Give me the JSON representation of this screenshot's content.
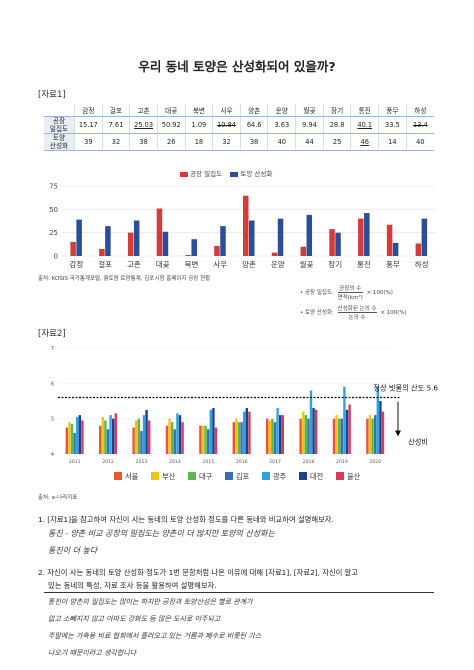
{
  "title": "우리 동네 토양은 산성화되어 있을까?",
  "material1": {
    "label": "[자료1]",
    "table": {
      "columns": [
        "감정",
        "걸포",
        "고촌",
        "대곶",
        "북변",
        "사우",
        "양촌",
        "운양",
        "월곶",
        "장기",
        "통진",
        "풍무",
        "하성"
      ],
      "rows": [
        {
          "label_line1": "공장",
          "label_line2": "밀집도",
          "values": [
            "15.17",
            "7.61",
            "25.03",
            "50.92",
            "1.09",
            "10.84",
            "64.6",
            "3.63",
            "9.94",
            "28.8",
            "40.1",
            "33.5",
            "13.4"
          ]
        },
        {
          "label_line1": "토양",
          "label_line2": "산성화",
          "values": [
            "39",
            "32",
            "38",
            "26",
            "18",
            "32",
            "38",
            "40",
            "44",
            "25",
            "46",
            "14",
            "40"
          ]
        }
      ]
    },
    "legend": {
      "factory": "공장 밀집도",
      "soil": "토양 산성화"
    },
    "source": "출처: KOSIS 국가통계포털, 흙토람 토양통계, 김포시청 홈페이지 공장 현황",
    "formula1": {
      "label": "• 공장 밀집도:",
      "num": "공장의 수",
      "den": "면적(km²)",
      "tail": "× 100(%)"
    },
    "formula2": {
      "label": "• 토양 산성화:",
      "num": "산성화된 논의 수",
      "den": "논의 수",
      "tail": "× 100(%)"
    }
  },
  "chart_data": [
    {
      "type": "bar",
      "categories": [
        "감정",
        "걸포",
        "고촌",
        "대곶",
        "북변",
        "사우",
        "양촌",
        "운양",
        "월곶",
        "장기",
        "통진",
        "풍무",
        "하성"
      ],
      "series": [
        {
          "name": "공장 밀집도",
          "values": [
            15.17,
            7.61,
            25.03,
            50.92,
            1.09,
            10.84,
            64.6,
            3.63,
            9.94,
            28.8,
            40.1,
            33.5,
            13.4
          ]
        },
        {
          "name": "토양 산성화",
          "values": [
            39,
            32,
            38,
            26,
            18,
            32,
            38,
            40,
            44,
            25,
            46,
            14,
            40
          ]
        }
      ],
      "ylim": [
        0,
        75
      ],
      "yticks": [
        "0",
        "25",
        "50",
        "75"
      ],
      "colors": [
        "#d63b3b",
        "#2a4d9c"
      ]
    },
    {
      "type": "bar",
      "categories": [
        "2011",
        "2012",
        "2013",
        "2014",
        "2015",
        "2016",
        "2017",
        "2018",
        "2019",
        "2020"
      ],
      "series": [
        {
          "name": "서울",
          "values": [
            4.75,
            4.8,
            4.75,
            4.8,
            4.8,
            4.9,
            5.0,
            5.0,
            5.0,
            5.0
          ]
        },
        {
          "name": "부산",
          "values": [
            4.9,
            5.05,
            4.95,
            5.0,
            4.8,
            5.0,
            4.95,
            5.2,
            5.1,
            5.1
          ]
        },
        {
          "name": "대구",
          "values": [
            4.85,
            4.95,
            5.0,
            4.9,
            4.8,
            4.9,
            5.0,
            5.1,
            5.0,
            5.0
          ]
        },
        {
          "name": "김포",
          "values": [
            4.6,
            4.7,
            4.65,
            4.7,
            4.7,
            4.9,
            4.9,
            5.0,
            5.0,
            5.1
          ]
        },
        {
          "name": "광주",
          "values": [
            5.05,
            5.1,
            5.1,
            5.15,
            5.25,
            5.2,
            5.3,
            5.8,
            5.9,
            5.9
          ]
        },
        {
          "name": "대전",
          "values": [
            5.1,
            5.0,
            5.25,
            5.1,
            5.3,
            5.3,
            5.1,
            5.3,
            5.25,
            5.5
          ]
        },
        {
          "name": "울산",
          "values": [
            4.95,
            5.15,
            4.95,
            4.9,
            4.75,
            5.2,
            5.1,
            5.25,
            5.4,
            5.2
          ]
        }
      ],
      "ylim": [
        4,
        7
      ],
      "yticks": [
        "4",
        "5",
        "6",
        "7"
      ],
      "threshold": 5.6,
      "threshold_label": "정상 빗물의 산도 5.6",
      "arrow_label": "산성비",
      "colors": [
        "#e8572f",
        "#f0c419",
        "#5bb84d",
        "#3a6fb5",
        "#2ba3e0",
        "#1f3f8c",
        "#d63b5a"
      ]
    }
  ],
  "material2": {
    "label": "[자료2]",
    "source": "출처: e-나라지표"
  },
  "q1": {
    "text": "1. [자료1]을 참고하여 자신이 사는 동네의 토양 산성화 정도를 다른 동네와 비교하여 설명해보자.",
    "answer_line1": "통진 - 양촌 비교       공장의 밀집도는 양촌이 더 많지만 토양의 산성화는",
    "answer_line2": "통진이       더       높다"
  },
  "q2": {
    "text_line1": "2. 자신이 사는 동네의 토양 산성화 정도가 1번 문항처럼 나온 이유에 대해 [자료1], [자료2], 자신이 알고",
    "text_line2": "있는 동네의 특성, 자료 조사 등을 활용하여 설명해보자.",
    "answer": [
      "통진이      양촌의      밀집도는      많이는      하지만      공장과      토양산성은      별로      관계가",
      "없고       소뻬지지       않고       아마도                  강화도      등      많은      도시로      이주되고",
      "주말에는      가축용      비료      협회에서      흘러오고      있는      거름과      폐수로      비롯된      가스",
      "나오기      때문이라고      생각합니다"
    ]
  }
}
